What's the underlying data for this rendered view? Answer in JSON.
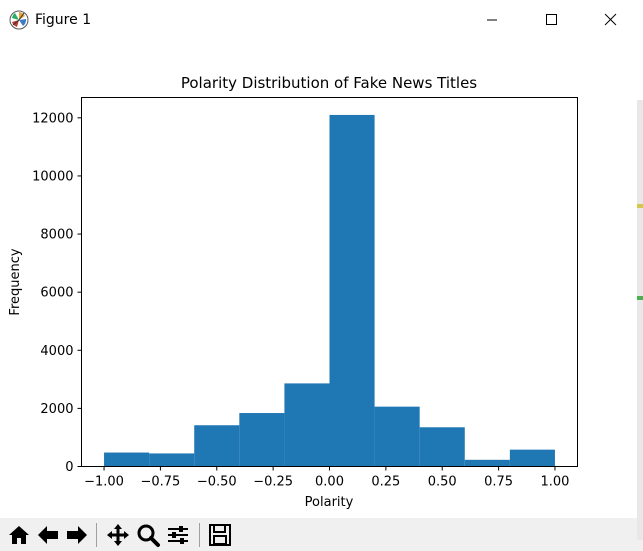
{
  "window": {
    "title": "Figure 1",
    "buttons": [
      "minimize",
      "maximize",
      "close"
    ]
  },
  "toolbar": {
    "tools": [
      {
        "name": "home-icon"
      },
      {
        "name": "back-arrow-icon"
      },
      {
        "name": "forward-arrow-icon"
      },
      {
        "name": "pan-icon"
      },
      {
        "name": "zoom-icon"
      },
      {
        "name": "configure-subplots-icon"
      },
      {
        "name": "save-icon"
      }
    ]
  },
  "chart_data": {
    "type": "bar",
    "title": "Polarity Distribution of Fake News Titles",
    "xlabel": "Polarity",
    "ylabel": "Frequency",
    "bar_color": "#1f77b4",
    "xlim": [
      -1.1,
      1.1
    ],
    "ylim": [
      0,
      12700
    ],
    "bins": [
      {
        "x0": -1.0,
        "x1": -0.8,
        "count": 480
      },
      {
        "x0": -0.8,
        "x1": -0.6,
        "count": 450
      },
      {
        "x0": -0.6,
        "x1": -0.4,
        "count": 1420
      },
      {
        "x0": -0.4,
        "x1": -0.2,
        "count": 1840
      },
      {
        "x0": -0.2,
        "x1": 0.0,
        "count": 2860
      },
      {
        "x0": 0.0,
        "x1": 0.2,
        "count": 12100
      },
      {
        "x0": 0.2,
        "x1": 0.4,
        "count": 2060
      },
      {
        "x0": 0.4,
        "x1": 0.6,
        "count": 1350
      },
      {
        "x0": 0.6,
        "x1": 0.8,
        "count": 230
      },
      {
        "x0": 0.8,
        "x1": 1.0,
        "count": 580
      }
    ],
    "xticks": [
      -1.0,
      -0.75,
      -0.5,
      -0.25,
      0.0,
      0.25,
      0.5,
      0.75,
      1.0
    ],
    "xtick_labels": [
      "−1.00",
      "−0.75",
      "−0.50",
      "−0.25",
      "0.00",
      "0.25",
      "0.50",
      "0.75",
      "1.00"
    ],
    "yticks": [
      0,
      2000,
      4000,
      6000,
      8000,
      10000,
      12000
    ],
    "ytick_labels": [
      "0",
      "2000",
      "4000",
      "6000",
      "8000",
      "10000",
      "12000"
    ],
    "grid": false,
    "legend": "none"
  }
}
